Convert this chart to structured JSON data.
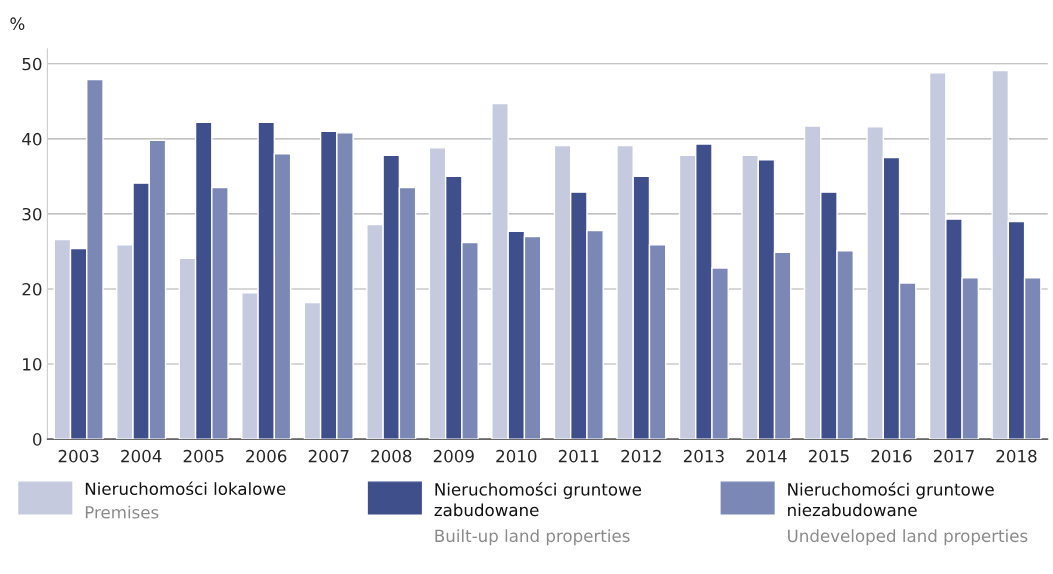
{
  "chart_data": {
    "type": "bar",
    "ylabel": "%",
    "categories": [
      "2003",
      "2004",
      "2005",
      "2006",
      "2007",
      "2008",
      "2009",
      "2010",
      "2011",
      "2012",
      "2013",
      "2014",
      "2015",
      "2016",
      "2017",
      "2018"
    ],
    "series": [
      {
        "name": "Nieruchomości lokalowe\nPremises",
        "color": "#c5cade",
        "values": [
          26.6,
          25.9,
          24.1,
          19.5,
          18.2,
          28.6,
          38.8,
          44.7,
          39.1,
          39.1,
          37.8,
          37.8,
          41.7,
          41.6,
          48.8,
          49.1
        ]
      },
      {
        "name": "Nieruchomości gruntowe\nzabudowane\nBuilt-up land properties",
        "color": "#3f4f8c",
        "values": [
          25.4,
          34.1,
          42.2,
          42.2,
          41.0,
          37.8,
          35.0,
          27.7,
          32.9,
          35.0,
          39.3,
          37.2,
          32.9,
          37.5,
          29.3,
          29.0
        ]
      },
      {
        "name": "Nieruchomości gruntowe\nniezabudowane\nUndeveloped land properties",
        "color": "#7b87b5",
        "values": [
          47.9,
          39.8,
          33.5,
          38.0,
          40.8,
          33.5,
          26.2,
          27.0,
          27.8,
          25.9,
          22.8,
          24.9,
          25.1,
          20.8,
          21.5,
          21.5
        ]
      }
    ],
    "ylim": [
      0,
      52
    ],
    "yticks": [
      0,
      10,
      20,
      30,
      40,
      50
    ],
    "grid": "y",
    "legend": "bottom"
  }
}
